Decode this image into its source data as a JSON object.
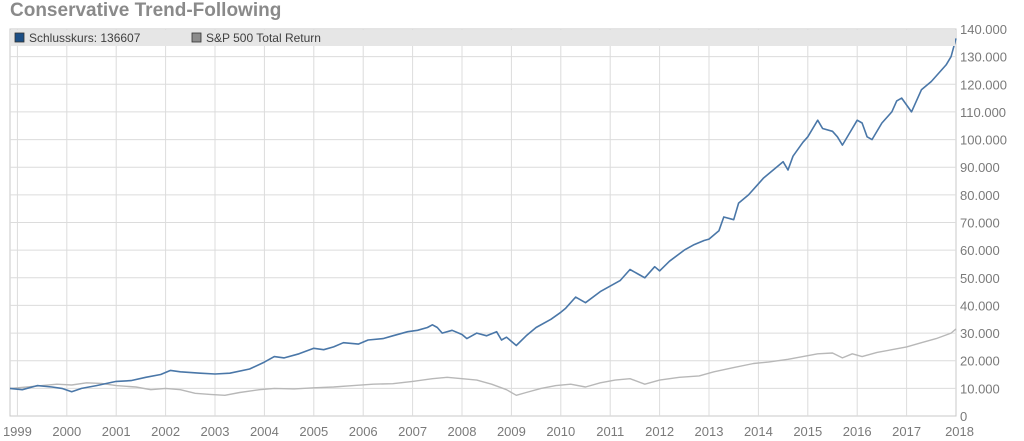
{
  "title": "Conservative Trend-Following",
  "colors": {
    "primary_line": "#4a77a8",
    "primary_legend": "#1c4f86",
    "benchmark_line": "#b8b8b8",
    "benchmark_legend": "#8c8c8c",
    "grid": "#dcdcdc",
    "legend_band": "#e6e6e6"
  },
  "chart_data": {
    "type": "line",
    "title": "Conservative Trend-Following",
    "xlabel": "",
    "ylabel": "",
    "grid": true,
    "legend_position": "top-left",
    "xlim": [
      1998.85,
      2018.0
    ],
    "ylim": [
      0,
      140000
    ],
    "x_ticks": [
      1999,
      2000,
      2001,
      2002,
      2003,
      2004,
      2005,
      2006,
      2007,
      2008,
      2009,
      2010,
      2011,
      2012,
      2013,
      2014,
      2015,
      2016,
      2017,
      2018
    ],
    "y_ticks": [
      0,
      10000,
      20000,
      30000,
      40000,
      50000,
      60000,
      70000,
      80000,
      90000,
      100000,
      110000,
      120000,
      130000,
      140000
    ],
    "y_tick_labels": [
      "0",
      "10.000",
      "20.000",
      "30.000",
      "40.000",
      "50.000",
      "60.000",
      "70.000",
      "80.000",
      "90.000",
      "100.000",
      "110.000",
      "120.000",
      "130.000",
      "140.000"
    ],
    "series": [
      {
        "name": "Schlusskurs: 136607",
        "points": [
          [
            1998.85,
            10000
          ],
          [
            1999.1,
            9500
          ],
          [
            1999.4,
            11000
          ],
          [
            1999.7,
            10500
          ],
          [
            1999.9,
            10000
          ],
          [
            2000.1,
            8800
          ],
          [
            2000.3,
            10000
          ],
          [
            2000.6,
            11000
          ],
          [
            2001.0,
            12500
          ],
          [
            2001.3,
            12800
          ],
          [
            2001.6,
            14000
          ],
          [
            2001.9,
            15000
          ],
          [
            2002.1,
            16500
          ],
          [
            2002.3,
            16000
          ],
          [
            2002.7,
            15500
          ],
          [
            2003.0,
            15200
          ],
          [
            2003.3,
            15500
          ],
          [
            2003.7,
            17000
          ],
          [
            2004.0,
            19500
          ],
          [
            2004.2,
            21500
          ],
          [
            2004.4,
            21000
          ],
          [
            2004.7,
            22500
          ],
          [
            2005.0,
            24500
          ],
          [
            2005.2,
            24000
          ],
          [
            2005.4,
            25000
          ],
          [
            2005.6,
            26500
          ],
          [
            2005.9,
            26000
          ],
          [
            2006.1,
            27500
          ],
          [
            2006.4,
            28000
          ],
          [
            2006.6,
            29000
          ],
          [
            2006.9,
            30500
          ],
          [
            2007.1,
            31000
          ],
          [
            2007.3,
            32000
          ],
          [
            2007.4,
            33000
          ],
          [
            2007.5,
            32000
          ],
          [
            2007.6,
            30000
          ],
          [
            2007.8,
            31000
          ],
          [
            2008.0,
            29500
          ],
          [
            2008.1,
            28000
          ],
          [
            2008.3,
            30000
          ],
          [
            2008.5,
            29000
          ],
          [
            2008.7,
            30500
          ],
          [
            2008.8,
            27500
          ],
          [
            2008.9,
            28500
          ],
          [
            2009.0,
            27000
          ],
          [
            2009.1,
            25500
          ],
          [
            2009.3,
            29000
          ],
          [
            2009.5,
            32000
          ],
          [
            2009.8,
            35000
          ],
          [
            2010.0,
            37500
          ],
          [
            2010.1,
            39000
          ],
          [
            2010.3,
            43000
          ],
          [
            2010.5,
            41000
          ],
          [
            2010.8,
            45000
          ],
          [
            2011.0,
            47000
          ],
          [
            2011.2,
            49000
          ],
          [
            2011.4,
            53000
          ],
          [
            2011.6,
            51000
          ],
          [
            2011.7,
            50000
          ],
          [
            2011.9,
            54000
          ],
          [
            2012.0,
            52500
          ],
          [
            2012.2,
            56000
          ],
          [
            2012.5,
            60000
          ],
          [
            2012.7,
            62000
          ],
          [
            2012.9,
            63500
          ],
          [
            2013.0,
            64000
          ],
          [
            2013.2,
            67000
          ],
          [
            2013.3,
            72000
          ],
          [
            2013.5,
            71000
          ],
          [
            2013.6,
            77000
          ],
          [
            2013.8,
            80000
          ],
          [
            2014.0,
            84000
          ],
          [
            2014.1,
            86000
          ],
          [
            2014.3,
            89000
          ],
          [
            2014.5,
            92000
          ],
          [
            2014.6,
            89000
          ],
          [
            2014.7,
            94000
          ],
          [
            2014.9,
            99000
          ],
          [
            2015.0,
            101000
          ],
          [
            2015.2,
            107000
          ],
          [
            2015.3,
            104000
          ],
          [
            2015.5,
            103000
          ],
          [
            2015.6,
            101000
          ],
          [
            2015.7,
            98000
          ],
          [
            2015.9,
            104000
          ],
          [
            2016.0,
            107000
          ],
          [
            2016.1,
            106000
          ],
          [
            2016.2,
            101000
          ],
          [
            2016.3,
            100000
          ],
          [
            2016.5,
            106000
          ],
          [
            2016.7,
            110000
          ],
          [
            2016.8,
            114000
          ],
          [
            2016.9,
            115000
          ],
          [
            2017.1,
            110000
          ],
          [
            2017.3,
            118000
          ],
          [
            2017.5,
            121000
          ],
          [
            2017.6,
            123000
          ],
          [
            2017.8,
            127000
          ],
          [
            2017.9,
            130000
          ],
          [
            2018.0,
            136607
          ]
        ]
      },
      {
        "name": "S&P 500 Total Return",
        "points": [
          [
            1998.85,
            10000
          ],
          [
            1999.2,
            10500
          ],
          [
            1999.5,
            11000
          ],
          [
            1999.8,
            11500
          ],
          [
            2000.1,
            11200
          ],
          [
            2000.4,
            12000
          ],
          [
            2000.7,
            11800
          ],
          [
            2001.0,
            11000
          ],
          [
            2001.4,
            10500
          ],
          [
            2001.7,
            9500
          ],
          [
            2002.0,
            10000
          ],
          [
            2002.3,
            9500
          ],
          [
            2002.6,
            8200
          ],
          [
            2002.9,
            7800
          ],
          [
            2003.2,
            7500
          ],
          [
            2003.5,
            8500
          ],
          [
            2003.9,
            9500
          ],
          [
            2004.2,
            10000
          ],
          [
            2004.6,
            9800
          ],
          [
            2005.0,
            10200
          ],
          [
            2005.4,
            10500
          ],
          [
            2005.8,
            11000
          ],
          [
            2006.2,
            11500
          ],
          [
            2006.6,
            11700
          ],
          [
            2007.0,
            12500
          ],
          [
            2007.4,
            13500
          ],
          [
            2007.7,
            14000
          ],
          [
            2008.0,
            13500
          ],
          [
            2008.3,
            13000
          ],
          [
            2008.6,
            11500
          ],
          [
            2008.9,
            9500
          ],
          [
            2009.1,
            7500
          ],
          [
            2009.3,
            8500
          ],
          [
            2009.6,
            10000
          ],
          [
            2009.9,
            11000
          ],
          [
            2010.2,
            11500
          ],
          [
            2010.5,
            10500
          ],
          [
            2010.8,
            12000
          ],
          [
            2011.1,
            13000
          ],
          [
            2011.4,
            13500
          ],
          [
            2011.7,
            11500
          ],
          [
            2012.0,
            13000
          ],
          [
            2012.4,
            14000
          ],
          [
            2012.8,
            14500
          ],
          [
            2013.1,
            16000
          ],
          [
            2013.5,
            17500
          ],
          [
            2013.9,
            19000
          ],
          [
            2014.2,
            19500
          ],
          [
            2014.6,
            20500
          ],
          [
            2014.9,
            21500
          ],
          [
            2015.2,
            22500
          ],
          [
            2015.5,
            22800
          ],
          [
            2015.7,
            21000
          ],
          [
            2015.9,
            22500
          ],
          [
            2016.1,
            21500
          ],
          [
            2016.4,
            23000
          ],
          [
            2016.7,
            24000
          ],
          [
            2017.0,
            25000
          ],
          [
            2017.3,
            26500
          ],
          [
            2017.6,
            28000
          ],
          [
            2017.9,
            30000
          ],
          [
            2018.0,
            31500
          ]
        ]
      }
    ]
  }
}
